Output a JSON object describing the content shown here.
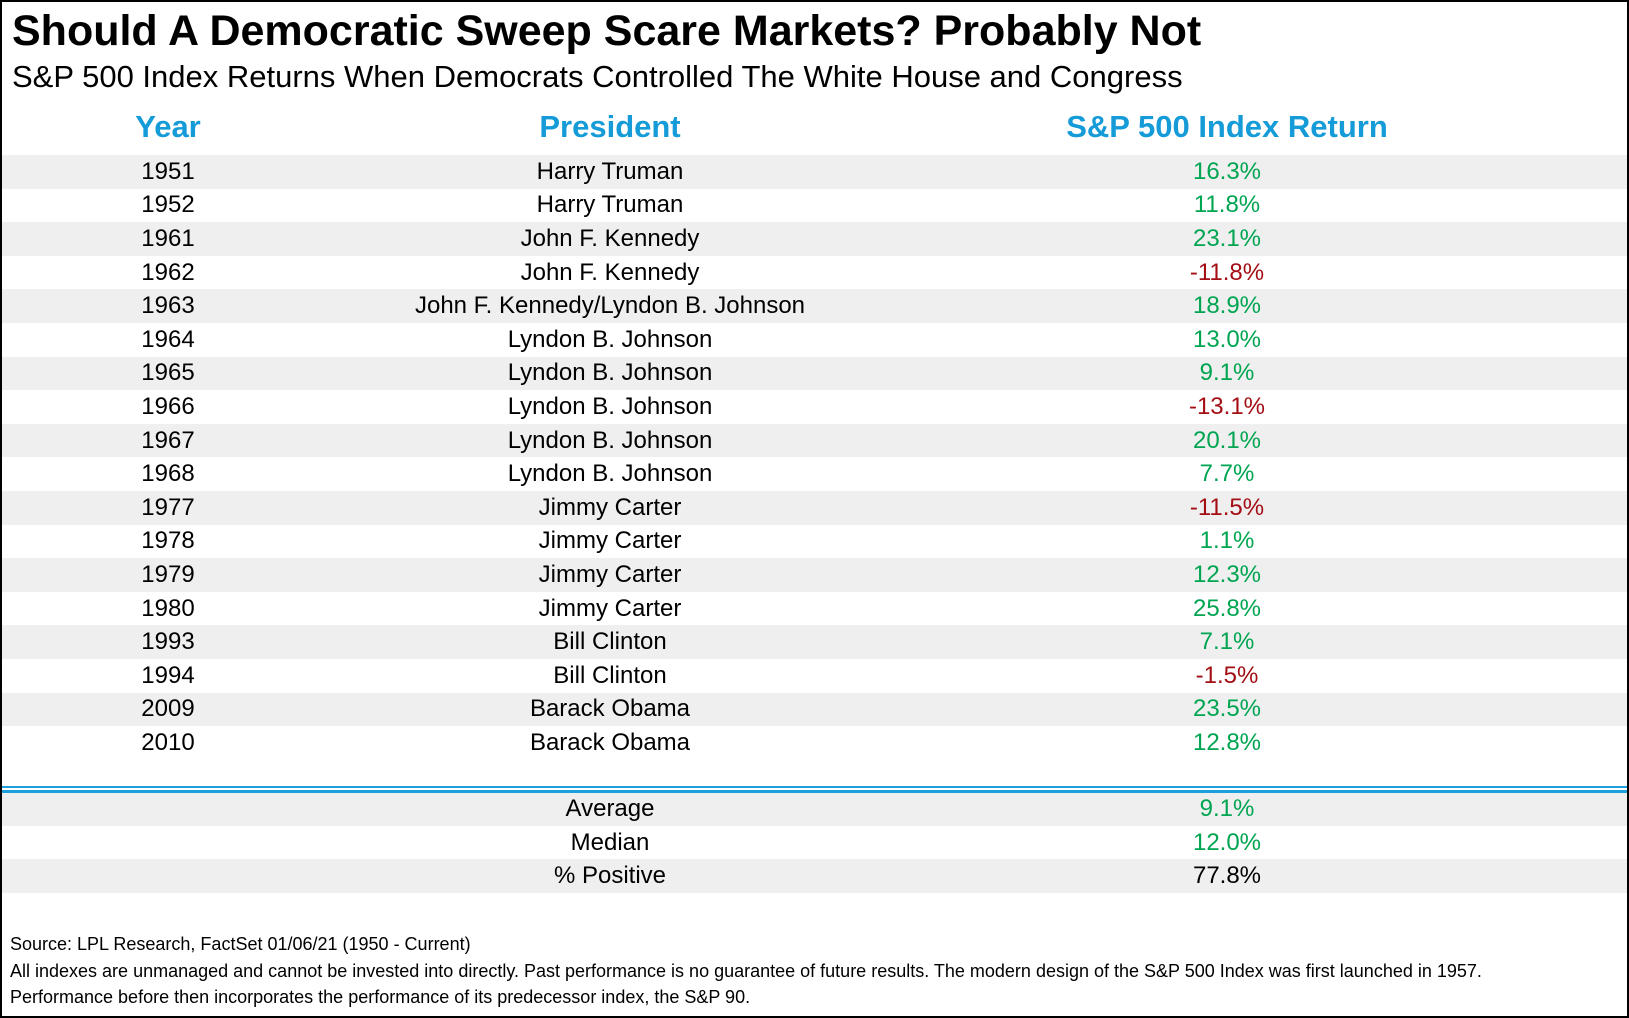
{
  "title": "Should A Democratic Sweep Scare Markets? Probably Not",
  "subtitle": "S&P 500 Index Returns When Democrats Controlled The White House and Congress",
  "colors": {
    "header_blue": "#149BD8",
    "positive_green": "#00A551",
    "negative_red": "#A30E14",
    "row_stripe": "#EFEFEF",
    "separator_blue": "#1C9FDB"
  },
  "table": {
    "columns": [
      "Year",
      "President",
      "S&P 500 Index Return"
    ],
    "rows": [
      {
        "year": "1951",
        "president": "Harry Truman",
        "value": "16.3%",
        "tone": "positive"
      },
      {
        "year": "1952",
        "president": "Harry Truman",
        "value": "11.8%",
        "tone": "positive"
      },
      {
        "year": "1961",
        "president": "John F. Kennedy",
        "value": "23.1%",
        "tone": "positive"
      },
      {
        "year": "1962",
        "president": "John F. Kennedy",
        "value": "-11.8%",
        "tone": "negative"
      },
      {
        "year": "1963",
        "president": "John F. Kennedy/Lyndon B. Johnson",
        "value": "18.9%",
        "tone": "positive"
      },
      {
        "year": "1964",
        "president": "Lyndon B. Johnson",
        "value": "13.0%",
        "tone": "positive"
      },
      {
        "year": "1965",
        "president": "Lyndon B. Johnson",
        "value": "9.1%",
        "tone": "positive"
      },
      {
        "year": "1966",
        "president": "Lyndon B. Johnson",
        "value": "-13.1%",
        "tone": "negative"
      },
      {
        "year": "1967",
        "president": "Lyndon B. Johnson",
        "value": "20.1%",
        "tone": "positive"
      },
      {
        "year": "1968",
        "president": "Lyndon B. Johnson",
        "value": "7.7%",
        "tone": "positive"
      },
      {
        "year": "1977",
        "president": "Jimmy Carter",
        "value": "-11.5%",
        "tone": "negative"
      },
      {
        "year": "1978",
        "president": "Jimmy Carter",
        "value": "1.1%",
        "tone": "positive"
      },
      {
        "year": "1979",
        "president": "Jimmy Carter",
        "value": "12.3%",
        "tone": "positive"
      },
      {
        "year": "1980",
        "president": "Jimmy Carter",
        "value": "25.8%",
        "tone": "positive"
      },
      {
        "year": "1993",
        "president": "Bill Clinton",
        "value": "7.1%",
        "tone": "positive"
      },
      {
        "year": "1994",
        "president": "Bill Clinton",
        "value": "-1.5%",
        "tone": "negative"
      },
      {
        "year": "2009",
        "president": "Barack Obama",
        "value": "23.5%",
        "tone": "positive"
      },
      {
        "year": "2010",
        "president": "Barack Obama",
        "value": "12.8%",
        "tone": "positive"
      }
    ],
    "summary_rows": [
      {
        "label": "Average",
        "value": "9.1%",
        "tone": "positive"
      },
      {
        "label": "Median",
        "value": "12.0%",
        "tone": "positive"
      },
      {
        "label": "% Positive",
        "value": "77.8%",
        "tone": "neutral"
      }
    ]
  },
  "footer": {
    "source": "Source: LPL Research, FactSet 01/06/21 (1950 - Current)",
    "disclaimer_line1": "All indexes are unmanaged and cannot be invested into directly. Past performance is no guarantee of future results. The modern design of the S&P 500 Index was first launched in 1957.",
    "disclaimer_line2": "Performance before then incorporates the performance of its  predecessor index, the S&P 90."
  },
  "chart_data": {
    "type": "table",
    "title": "Should A Democratic Sweep Scare Markets? Probably Not",
    "subtitle": "S&P 500 Index Returns When Democrats Controlled The White House and Congress",
    "columns": [
      "Year",
      "President",
      "S&P 500 Index Return"
    ],
    "rows": [
      [
        1951,
        "Harry Truman",
        16.3
      ],
      [
        1952,
        "Harry Truman",
        11.8
      ],
      [
        1961,
        "John F. Kennedy",
        23.1
      ],
      [
        1962,
        "John F. Kennedy",
        -11.8
      ],
      [
        1963,
        "John F. Kennedy/Lyndon B. Johnson",
        18.9
      ],
      [
        1964,
        "Lyndon B. Johnson",
        13.0
      ],
      [
        1965,
        "Lyndon B. Johnson",
        9.1
      ],
      [
        1966,
        "Lyndon B. Johnson",
        -13.1
      ],
      [
        1967,
        "Lyndon B. Johnson",
        20.1
      ],
      [
        1968,
        "Lyndon B. Johnson",
        7.7
      ],
      [
        1977,
        "Jimmy Carter",
        -11.5
      ],
      [
        1978,
        "Jimmy Carter",
        1.1
      ],
      [
        1979,
        "Jimmy Carter",
        12.3
      ],
      [
        1980,
        "Jimmy Carter",
        25.8
      ],
      [
        1993,
        "Bill Clinton",
        7.1
      ],
      [
        1994,
        "Bill Clinton",
        -1.5
      ],
      [
        2009,
        "Barack Obama",
        23.5
      ],
      [
        2010,
        "Barack Obama",
        12.8
      ]
    ],
    "value_unit": "%",
    "summary": {
      "average": 9.1,
      "median": 12.0,
      "pct_positive": 77.8
    },
    "style_notes": "positive returns green, negative returns dark red, alternating gray row stripes, double blue rule above summary rows"
  }
}
